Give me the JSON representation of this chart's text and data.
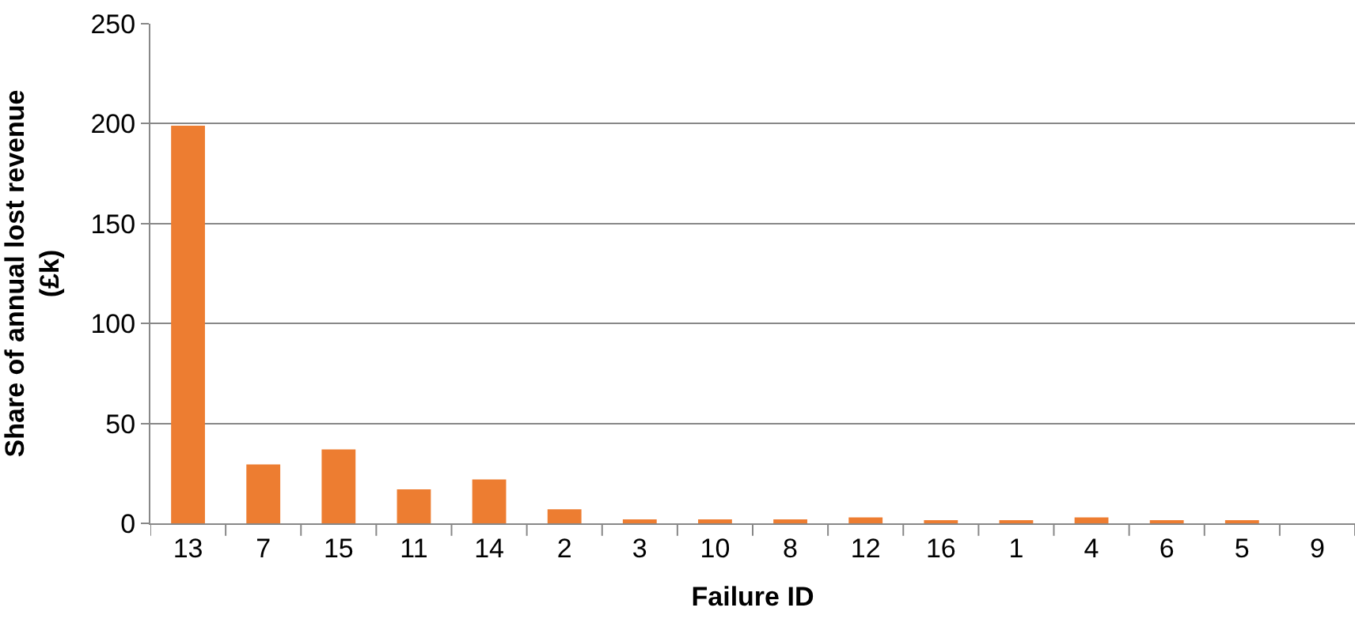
{
  "chart_data": {
    "type": "bar",
    "xlabel": "Failure ID",
    "ylabel": "Share of annual lost revenue (£k)",
    "categories": [
      "13",
      "7",
      "15",
      "11",
      "14",
      "2",
      "3",
      "10",
      "8",
      "12",
      "16",
      "1",
      "4",
      "6",
      "5",
      "9"
    ],
    "values": [
      199,
      29.5,
      37,
      17,
      22,
      7,
      2,
      2,
      2,
      3,
      1,
      1,
      3,
      1,
      1,
      0
    ],
    "color": "#ed7d31",
    "ylim": [
      0,
      250
    ],
    "yticks": [
      0,
      50,
      100,
      150,
      200,
      250
    ],
    "grid": "y",
    "legend": false
  }
}
